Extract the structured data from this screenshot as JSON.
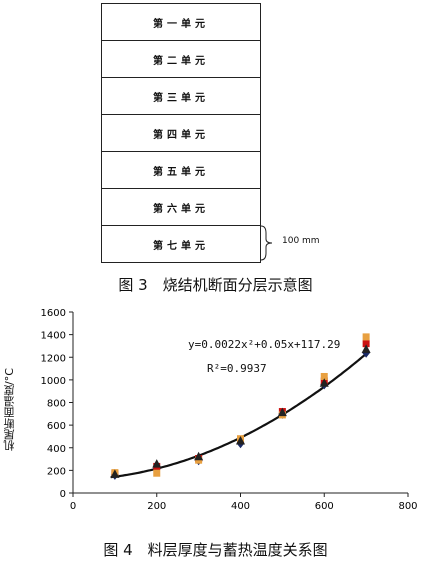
{
  "figure3": {
    "layers": [
      "第一单元",
      "第二单元",
      "第三单元",
      "第四单元",
      "第五单元",
      "第六单元",
      "第七单元"
    ],
    "dimension_label": "100 mm",
    "caption": "图 3　烧结机断面分层示意图"
  },
  "figure4": {
    "caption": "图 4　料层厚度与蓄热温度关系图",
    "equation": "y=0.0022x²+0.05x+117.29",
    "r_squared": "R²=0.9937"
  },
  "chart_data": {
    "type": "scatter",
    "ylabel": "机尾断面温度/°C",
    "xlim": [
      0,
      800
    ],
    "ylim": [
      0,
      1600
    ],
    "x_ticks": [
      0,
      200,
      400,
      600,
      800
    ],
    "y_ticks": [
      0,
      200,
      400,
      600,
      800,
      1000,
      1200,
      1400,
      1600
    ],
    "series": [
      {
        "color": "#1a2a66",
        "marker": "diamond",
        "x": [
          100,
          200,
          300,
          400,
          500,
          600,
          700
        ],
        "y": [
          160,
          215,
          290,
          440,
          700,
          960,
          1240
        ]
      },
      {
        "color": "#cc1111",
        "marker": "square",
        "x": [
          100,
          200,
          300,
          400,
          500,
          600,
          700
        ],
        "y": [
          170,
          235,
          305,
          470,
          720,
          990,
          1320
        ]
      },
      {
        "color": "#e8a040",
        "marker": "square",
        "x": [
          100,
          200,
          300,
          400,
          500,
          600,
          700
        ],
        "y": [
          180,
          175,
          290,
          480,
          690,
          1030,
          1380
        ]
      },
      {
        "color": "#222222",
        "marker": "triangle",
        "x": [
          100,
          200,
          300,
          400,
          500,
          600,
          700
        ],
        "y": [
          165,
          255,
          320,
          460,
          710,
          970,
          1270
        ]
      }
    ],
    "trendline": {
      "a": 0.0022,
      "b": 0.05,
      "c": 117.29,
      "x_range": [
        90,
        700
      ],
      "color": "#111111"
    }
  }
}
